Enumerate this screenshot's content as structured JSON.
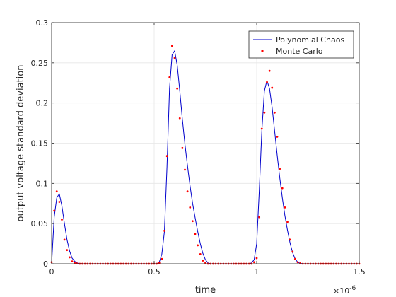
{
  "chart_data": {
    "type": "line",
    "title": "",
    "xlabel": "time",
    "ylabel": "output voltage standard deviation",
    "x_exponent_label": "×10",
    "x_exponent_power": "-6",
    "xlim": [
      0,
      1.5
    ],
    "ylim": [
      0,
      0.3
    ],
    "x_ticks": [
      0,
      0.5,
      1,
      1.5
    ],
    "x_tick_labels": [
      "0",
      "0.5",
      "1",
      "1.5"
    ],
    "y_ticks": [
      0,
      0.05,
      0.1,
      0.15,
      0.2,
      0.25,
      0.3
    ],
    "y_tick_labels": [
      "0",
      "0.05",
      "0.1",
      "0.15",
      "0.2",
      "0.25",
      "0.3"
    ],
    "grid": true,
    "legend_position": "top-right",
    "series": [
      {
        "name": "Polynomial Chaos",
        "style": "line",
        "color": "#0000cc",
        "x": [
          0,
          0.0125,
          0.025,
          0.0375,
          0.05,
          0.0625,
          0.075,
          0.0875,
          0.1,
          0.1125,
          0.125,
          0.1375,
          0.15,
          0.2,
          0.3,
          0.4,
          0.5,
          0.5125,
          0.525,
          0.5375,
          0.55,
          0.5625,
          0.575,
          0.5875,
          0.6,
          0.6125,
          0.625,
          0.6375,
          0.65,
          0.6625,
          0.675,
          0.6875,
          0.7,
          0.7125,
          0.725,
          0.7375,
          0.75,
          0.7625,
          0.775,
          0.8,
          0.9,
          0.9625,
          0.975,
          0.9875,
          1.0,
          1.0125,
          1.025,
          1.0375,
          1.05,
          1.0625,
          1.075,
          1.0875,
          1.1,
          1.1125,
          1.125,
          1.1375,
          1.15,
          1.1625,
          1.175,
          1.1875,
          1.2,
          1.2125,
          1.225,
          1.25,
          1.35,
          1.5
        ],
        "values": [
          0,
          0.058,
          0.082,
          0.087,
          0.072,
          0.05,
          0.03,
          0.016,
          0.007,
          0.003,
          0.001,
          0.0003,
          0,
          0,
          0,
          0,
          0,
          0,
          0.002,
          0.012,
          0.04,
          0.12,
          0.218,
          0.26,
          0.265,
          0.247,
          0.215,
          0.18,
          0.149,
          0.122,
          0.097,
          0.075,
          0.057,
          0.04,
          0.025,
          0.013,
          0.005,
          0.001,
          0,
          0,
          0,
          0,
          0.001,
          0.005,
          0.025,
          0.09,
          0.165,
          0.215,
          0.228,
          0.218,
          0.195,
          0.165,
          0.135,
          0.107,
          0.082,
          0.06,
          0.042,
          0.026,
          0.014,
          0.006,
          0.002,
          0.0005,
          0,
          0,
          0,
          0
        ]
      },
      {
        "name": "Monte Carlo",
        "style": "markers",
        "color": "#ff0000",
        "x": [
          0,
          0.0125,
          0.025,
          0.0375,
          0.05,
          0.0625,
          0.075,
          0.0875,
          0.1,
          0.1125,
          0.125,
          0.1375,
          0.15,
          0.1625,
          0.175,
          0.1875,
          0.2,
          0.2125,
          0.225,
          0.2375,
          0.25,
          0.2625,
          0.275,
          0.2875,
          0.3,
          0.3125,
          0.325,
          0.3375,
          0.35,
          0.3625,
          0.375,
          0.3875,
          0.4,
          0.4125,
          0.425,
          0.4375,
          0.45,
          0.4625,
          0.475,
          0.4875,
          0.5,
          0.5125,
          0.525,
          0.5375,
          0.55,
          0.5625,
          0.575,
          0.5875,
          0.6,
          0.6125,
          0.625,
          0.6375,
          0.65,
          0.6625,
          0.675,
          0.6875,
          0.7,
          0.7125,
          0.725,
          0.7375,
          0.75,
          0.7625,
          0.775,
          0.7875,
          0.8,
          0.8125,
          0.825,
          0.8375,
          0.85,
          0.8625,
          0.875,
          0.8875,
          0.9,
          0.9125,
          0.925,
          0.9375,
          0.95,
          0.9625,
          0.975,
          0.9875,
          1.0,
          1.0125,
          1.025,
          1.0375,
          1.05,
          1.0625,
          1.075,
          1.0875,
          1.1,
          1.1125,
          1.125,
          1.1375,
          1.15,
          1.1625,
          1.175,
          1.1875,
          1.2,
          1.2125,
          1.225,
          1.2375,
          1.25,
          1.2625,
          1.275,
          1.2875,
          1.3,
          1.3125,
          1.325,
          1.3375,
          1.35,
          1.3625,
          1.375,
          1.3875,
          1.4,
          1.4125,
          1.425,
          1.4375,
          1.45,
          1.4625,
          1.475,
          1.4875,
          1.5
        ],
        "values": [
          0.002,
          0.066,
          0.09,
          0.077,
          0.055,
          0.03,
          0.017,
          0.008,
          0.003,
          0.001,
          0.0003,
          0,
          0,
          0,
          0,
          0,
          0,
          0,
          0,
          0,
          0,
          0,
          0,
          0,
          0,
          0,
          0,
          0,
          0,
          0,
          0,
          0,
          0,
          0,
          0,
          0,
          0,
          0,
          0,
          0,
          0,
          0,
          0.001,
          0.006,
          0.041,
          0.134,
          0.232,
          0.271,
          0.256,
          0.218,
          0.181,
          0.144,
          0.117,
          0.09,
          0.07,
          0.053,
          0.037,
          0.023,
          0.012,
          0.004,
          0.001,
          0,
          0,
          0,
          0,
          0,
          0,
          0,
          0,
          0,
          0,
          0,
          0,
          0,
          0,
          0,
          0,
          0,
          0,
          0.002,
          0.007,
          0.058,
          0.168,
          0.188,
          0.226,
          0.24,
          0.219,
          0.188,
          0.158,
          0.118,
          0.094,
          0.07,
          0.052,
          0.03,
          0.015,
          0.006,
          0.002,
          0.0005,
          0,
          0,
          0,
          0,
          0,
          0,
          0,
          0,
          0,
          0,
          0,
          0,
          0,
          0,
          0,
          0,
          0,
          0,
          0,
          0,
          0,
          0,
          0
        ]
      }
    ]
  }
}
